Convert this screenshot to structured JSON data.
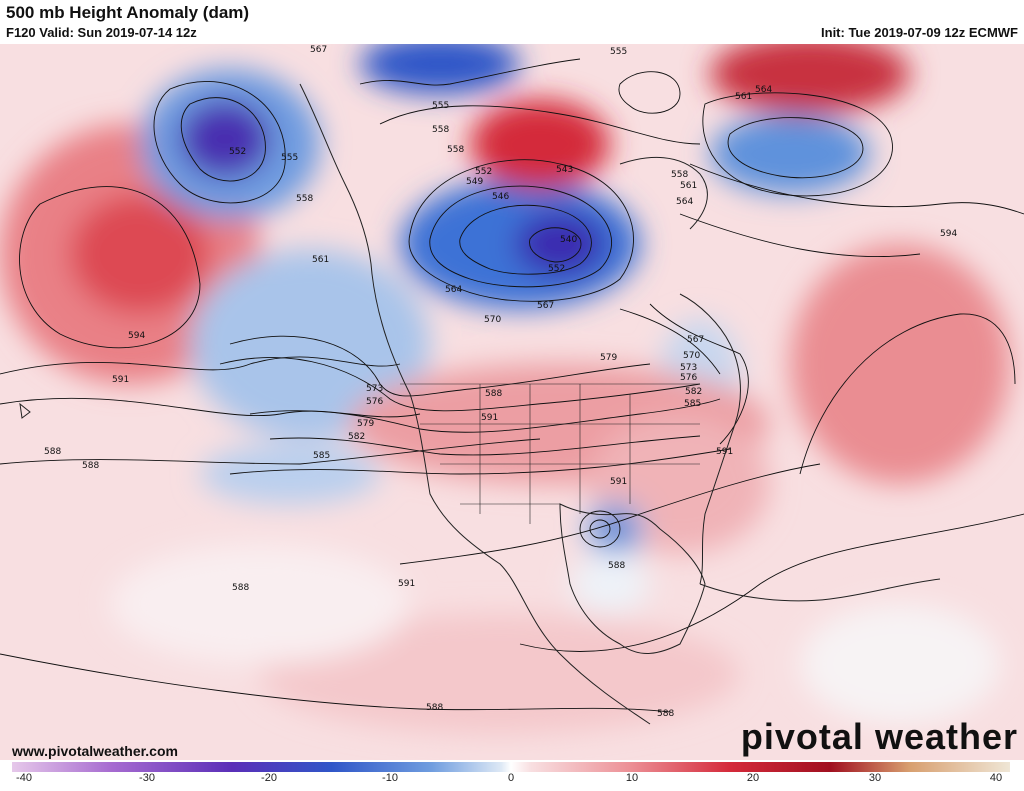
{
  "header": {
    "title": "500 mb Height Anomaly (dam)",
    "valid": "F120 Valid: Sun 2019-07-14 12z",
    "init": "Init: Tue 2019-07-09 12z ECMWF"
  },
  "footer": {
    "site": "www.pivotalweather.com",
    "logo": "pivotal weather"
  },
  "colorbar": {
    "min": -40,
    "max": 40,
    "ticks": [
      "-40",
      "-30",
      "-20",
      "-10",
      "0",
      "10",
      "20",
      "30",
      "40"
    ]
  },
  "contour_labels": [
    "567",
    "555",
    "555",
    "561",
    "564",
    "552",
    "555",
    "558",
    "558",
    "549",
    "552",
    "546",
    "543",
    "540",
    "552",
    "558",
    "561",
    "564",
    "561",
    "558",
    "564",
    "567",
    "570",
    "579",
    "567",
    "570",
    "573",
    "576",
    "582",
    "585",
    "573",
    "576",
    "588",
    "591",
    "579",
    "582",
    "585",
    "594",
    "591",
    "588",
    "588",
    "591",
    "591",
    "588",
    "591",
    "588",
    "588",
    "588",
    "594"
  ],
  "colors": {
    "positive_anomaly": "#e0404a",
    "negative_anomaly": "#2f6fd6",
    "strong_negative": "#5a2fb8",
    "weak_positive": "#f6cfd2",
    "weak_negative": "#bfd4ee"
  }
}
